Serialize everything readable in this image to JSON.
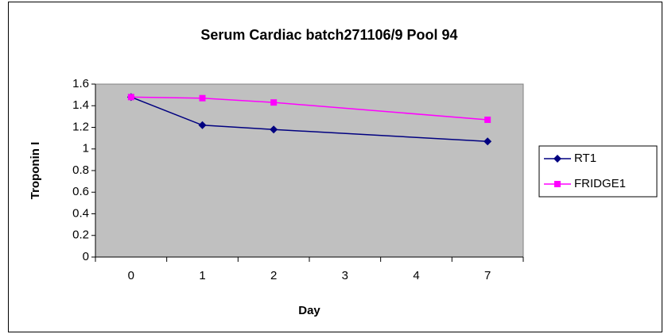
{
  "chart_data": {
    "type": "line",
    "title": "Serum Cardiac batch271106/9  Pool 94",
    "x_label": "Day",
    "y_label": "Troponin I",
    "categories": [
      "0",
      "1",
      "2",
      "3",
      "4",
      "7"
    ],
    "series": [
      {
        "name": "RT1",
        "color": "#000080",
        "marker": "diamond",
        "values": [
          1.48,
          1.22,
          1.18,
          null,
          null,
          1.07
        ]
      },
      {
        "name": "FRIDGE1",
        "color": "#ff00ff",
        "marker": "square",
        "values": [
          1.48,
          1.47,
          1.43,
          null,
          null,
          1.27
        ]
      }
    ],
    "connect_nulls": true,
    "ylim": [
      0,
      1.6
    ],
    "yticks": [
      0,
      0.2,
      0.4,
      0.6,
      0.8,
      1,
      1.2,
      1.4,
      1.6
    ],
    "grid": false,
    "legend": "right",
    "plot_background": "#c0c0c0"
  }
}
